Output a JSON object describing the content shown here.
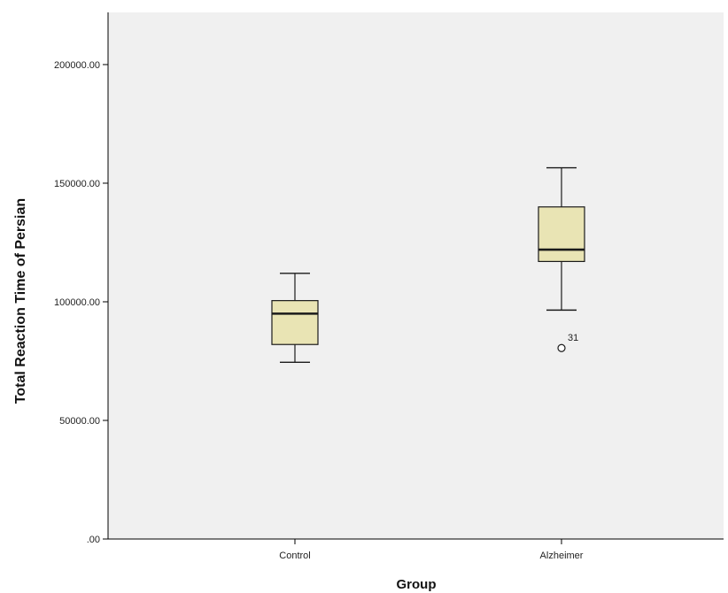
{
  "chart_data": {
    "type": "box",
    "xlabel": "Group",
    "ylabel": "Total Reaction Time of Persian",
    "ylim": [
      0,
      222000
    ],
    "yticks": [
      {
        "value": 0,
        "label": ".00"
      },
      {
        "value": 50000,
        "label": "50000.00"
      },
      {
        "value": 100000,
        "label": "100000.00"
      },
      {
        "value": 150000,
        "label": "150000.00"
      },
      {
        "value": 200000,
        "label": "200000.00"
      }
    ],
    "grid": false,
    "legend": "none",
    "categories": [
      "Control",
      "Alzheimer"
    ],
    "boxes": [
      {
        "category": "Control",
        "whisker_low": 74500,
        "q1": 82000,
        "median": 95000,
        "q3": 100500,
        "whisker_high": 112000,
        "outliers": []
      },
      {
        "category": "Alzheimer",
        "whisker_low": 96500,
        "q1": 117000,
        "median": 122000,
        "q3": 140000,
        "whisker_high": 156500,
        "outliers": [
          {
            "value": 80500,
            "label": "31"
          }
        ]
      }
    ],
    "colors": {
      "plot_bg": "#f0f0f0",
      "box_fill": "#e9e4b4",
      "line": "#1a1a1a"
    }
  }
}
